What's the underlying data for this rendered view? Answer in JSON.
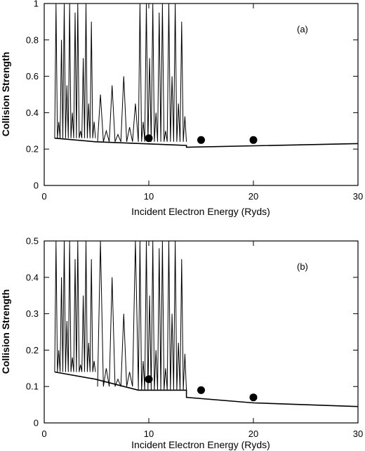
{
  "chart_data": [
    {
      "type": "line",
      "panel_label": "(a)",
      "xlabel": "Incident Electron Energy (Ryds)",
      "ylabel": "Collision Strength",
      "xlim": [
        0,
        30
      ],
      "ylim": [
        0,
        1
      ],
      "x_ticks": [
        "0",
        "10",
        "20",
        "30"
      ],
      "y_ticks": [
        "0",
        "0.2",
        "0.4",
        "0.6",
        "0.8",
        "1"
      ],
      "grid": false,
      "colors": {
        "line": "#000000",
        "points": "#000000"
      },
      "resonance_bands": [
        {
          "x_start": 1.0,
          "x_end": 4.9,
          "base": 0.26,
          "spikes": [
            1.0,
            0.35,
            0.8,
            1.0,
            0.55,
            1.0,
            0.4,
            0.95,
            1.0,
            0.3,
            0.7,
            1.0,
            0.45,
            0.9,
            0.35
          ]
        },
        {
          "x_start": 5.1,
          "x_end": 9.0,
          "base": 0.24,
          "spikes": [
            0.5,
            0.3,
            0.55,
            0.28,
            0.6,
            0.32,
            0.45
          ]
        },
        {
          "x_start": 9.0,
          "x_end": 13.6,
          "base": 0.24,
          "spikes": [
            1.0,
            0.35,
            1.0,
            0.7,
            1.0,
            0.4,
            0.95,
            1.0,
            0.3,
            1.0,
            0.6,
            1.0,
            0.45,
            0.9,
            0.38
          ]
        }
      ],
      "background_curve": {
        "x": [
          1.0,
          4.9,
          13.6,
          13.6,
          30.0
        ],
        "y": [
          0.26,
          0.24,
          0.22,
          0.21,
          0.23
        ]
      },
      "points": {
        "x": [
          10,
          15,
          20
        ],
        "y": [
          0.26,
          0.25,
          0.25
        ]
      }
    },
    {
      "type": "line",
      "panel_label": "(b)",
      "xlabel": "Incident Electron Energy (Ryds)",
      "ylabel": "Collision Strength",
      "xlim": [
        0,
        30
      ],
      "ylim": [
        0,
        0.5
      ],
      "x_ticks": [
        "0",
        "10",
        "20",
        "30"
      ],
      "y_ticks": [
        "0",
        "0.1",
        "0.2",
        "0.3",
        "0.4",
        "0.5"
      ],
      "grid": false,
      "colors": {
        "line": "#000000",
        "points": "#000000"
      },
      "resonance_bands": [
        {
          "x_start": 1.0,
          "x_end": 4.9,
          "base": 0.14,
          "spikes": [
            0.5,
            0.2,
            0.4,
            0.5,
            0.28,
            0.5,
            0.18,
            0.45,
            0.5,
            0.16,
            0.35,
            0.5,
            0.22,
            0.45,
            0.17
          ]
        },
        {
          "x_start": 5.1,
          "x_end": 9.0,
          "base": 0.1,
          "spikes": [
            0.5,
            0.15,
            0.4,
            0.12,
            0.3,
            0.14,
            0.5
          ]
        },
        {
          "x_start": 9.0,
          "x_end": 13.6,
          "base": 0.09,
          "spikes": [
            0.5,
            0.17,
            0.5,
            0.35,
            0.5,
            0.2,
            0.48,
            0.5,
            0.15,
            0.5,
            0.3,
            0.5,
            0.22,
            0.45,
            0.19
          ]
        }
      ],
      "background_curve": {
        "x": [
          1.0,
          4.9,
          9.0,
          13.6,
          13.6,
          20.0,
          30.0
        ],
        "y": [
          0.14,
          0.12,
          0.09,
          0.09,
          0.07,
          0.055,
          0.045
        ]
      },
      "points": {
        "x": [
          10,
          15,
          20
        ],
        "y": [
          0.12,
          0.09,
          0.07
        ]
      }
    }
  ]
}
